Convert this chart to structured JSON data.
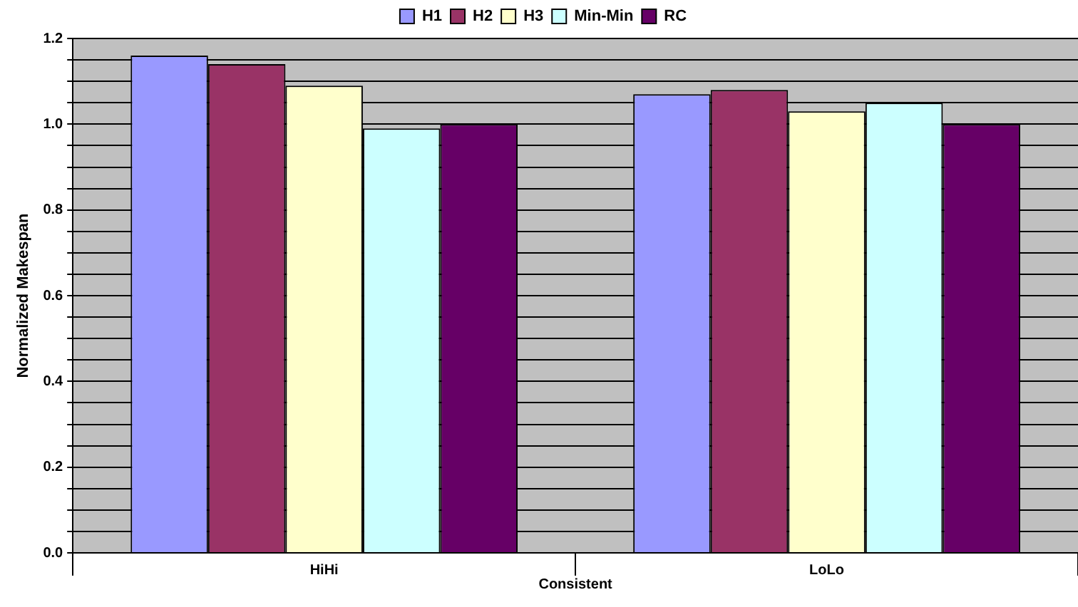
{
  "chart_data": {
    "type": "bar",
    "categories": [
      "HiHi",
      "LoLo"
    ],
    "xlabel": "Consistent",
    "ylabel": "Normalized Makespan",
    "series": [
      {
        "name": "H1",
        "color": "#9999ff",
        "values": [
          1.16,
          1.07
        ]
      },
      {
        "name": "H2",
        "color": "#993366",
        "values": [
          1.14,
          1.08
        ]
      },
      {
        "name": "H3",
        "color": "#ffffcc",
        "values": [
          1.09,
          1.03
        ]
      },
      {
        "name": "Min-Min",
        "color": "#ccffff",
        "values": [
          0.99,
          1.05
        ]
      },
      {
        "name": "RC",
        "color": "#660066",
        "values": [
          1.0,
          1.0
        ]
      }
    ],
    "ylim": [
      0,
      1.2
    ],
    "yticks": [
      {
        "value": 0,
        "label": "0.0"
      },
      {
        "value": 0.05,
        "label": null
      },
      {
        "value": 0.1,
        "label": null
      },
      {
        "value": 0.15,
        "label": null
      },
      {
        "value": 0.2,
        "label": "0.2"
      },
      {
        "value": 0.25,
        "label": null
      },
      {
        "value": 0.3,
        "label": null
      },
      {
        "value": 0.35,
        "label": null
      },
      {
        "value": 0.4,
        "label": "0.4"
      },
      {
        "value": 0.45,
        "label": null
      },
      {
        "value": 0.5,
        "label": null
      },
      {
        "value": 0.55,
        "label": null
      },
      {
        "value": 0.6,
        "label": "0.6"
      },
      {
        "value": 0.65,
        "label": null
      },
      {
        "value": 0.7,
        "label": null
      },
      {
        "value": 0.75,
        "label": null
      },
      {
        "value": 0.8,
        "label": "0.8"
      },
      {
        "value": 0.85,
        "label": null
      },
      {
        "value": 0.9,
        "label": null
      },
      {
        "value": 0.95,
        "label": null
      },
      {
        "value": 1,
        "label": "1.0"
      },
      {
        "value": 1.05,
        "label": null
      },
      {
        "value": 1.1,
        "label": null
      },
      {
        "value": 1.15,
        "label": null
      },
      {
        "value": 1.2,
        "label": "1.2"
      }
    ],
    "grid": "y",
    "legend": "top"
  }
}
